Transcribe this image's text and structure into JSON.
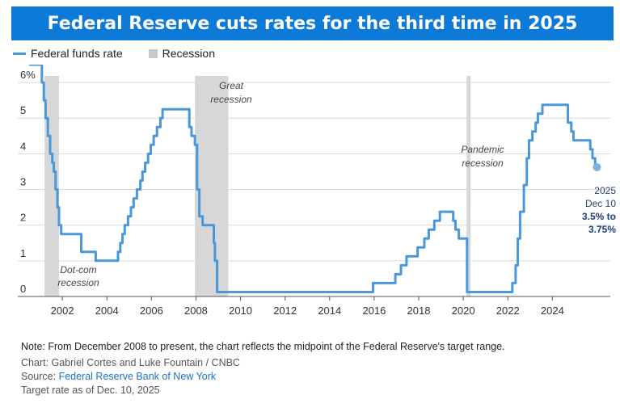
{
  "title": "Federal Reserve cuts rates for the third time in 2025",
  "legend": {
    "line_label": "Federal funds rate",
    "shade_label": "Recession"
  },
  "colors": {
    "title_bg": "#0c7ad6",
    "line": "#4a97d9",
    "recession": "#d7d7d7",
    "end_marker": "#7fb2e0"
  },
  "chart_data": {
    "type": "line",
    "x_ticks": [
      "2002",
      "2004",
      "2006",
      "2008",
      "2010",
      "2012",
      "2014",
      "2016",
      "2018",
      "2020",
      "2022",
      "2024"
    ],
    "y_ticks": [
      "6%",
      "5",
      "4",
      "3",
      "2",
      "1",
      "0"
    ],
    "xlim": [
      2000.0,
      2026.6
    ],
    "ylim": [
      0,
      6.5
    ],
    "grid": "horizontal",
    "legend_position": "top-left",
    "series": [
      {
        "name": "Federal funds rate",
        "step": true,
        "points": [
          [
            2000.5,
            6.5
          ],
          [
            2001.0,
            6.5
          ],
          [
            2001.08,
            6.0
          ],
          [
            2001.17,
            5.5
          ],
          [
            2001.25,
            5.0
          ],
          [
            2001.35,
            4.5
          ],
          [
            2001.45,
            4.0
          ],
          [
            2001.55,
            3.75
          ],
          [
            2001.62,
            3.5
          ],
          [
            2001.7,
            3.0
          ],
          [
            2001.78,
            2.5
          ],
          [
            2001.85,
            2.0
          ],
          [
            2001.95,
            1.75
          ],
          [
            2002.85,
            1.25
          ],
          [
            2003.5,
            1.0
          ],
          [
            2004.5,
            1.25
          ],
          [
            2004.6,
            1.5
          ],
          [
            2004.7,
            1.75
          ],
          [
            2004.8,
            2.0
          ],
          [
            2004.95,
            2.25
          ],
          [
            2005.08,
            2.5
          ],
          [
            2005.2,
            2.75
          ],
          [
            2005.35,
            3.0
          ],
          [
            2005.5,
            3.25
          ],
          [
            2005.6,
            3.5
          ],
          [
            2005.72,
            3.75
          ],
          [
            2005.85,
            4.0
          ],
          [
            2005.97,
            4.25
          ],
          [
            2006.1,
            4.5
          ],
          [
            2006.25,
            4.75
          ],
          [
            2006.4,
            5.0
          ],
          [
            2006.5,
            5.25
          ],
          [
            2007.7,
            4.75
          ],
          [
            2007.8,
            4.5
          ],
          [
            2007.95,
            4.25
          ],
          [
            2008.05,
            3.0
          ],
          [
            2008.15,
            2.25
          ],
          [
            2008.3,
            2.0
          ],
          [
            2008.8,
            1.5
          ],
          [
            2008.85,
            1.0
          ],
          [
            2008.95,
            0.125
          ],
          [
            2015.95,
            0.375
          ],
          [
            2016.95,
            0.625
          ],
          [
            2017.2,
            0.875
          ],
          [
            2017.45,
            1.125
          ],
          [
            2017.95,
            1.375
          ],
          [
            2018.25,
            1.625
          ],
          [
            2018.45,
            1.875
          ],
          [
            2018.7,
            2.125
          ],
          [
            2018.95,
            2.375
          ],
          [
            2019.55,
            2.125
          ],
          [
            2019.65,
            1.875
          ],
          [
            2019.8,
            1.625
          ],
          [
            2020.17,
            0.125
          ],
          [
            2022.2,
            0.375
          ],
          [
            2022.35,
            0.875
          ],
          [
            2022.45,
            1.625
          ],
          [
            2022.55,
            2.375
          ],
          [
            2022.72,
            3.125
          ],
          [
            2022.85,
            3.875
          ],
          [
            2022.95,
            4.375
          ],
          [
            2023.1,
            4.625
          ],
          [
            2023.25,
            4.875
          ],
          [
            2023.35,
            5.125
          ],
          [
            2023.55,
            5.375
          ],
          [
            2024.7,
            4.875
          ],
          [
            2024.85,
            4.625
          ],
          [
            2024.95,
            4.375
          ],
          [
            2025.7,
            4.125
          ],
          [
            2025.8,
            3.875
          ],
          [
            2025.92,
            3.625
          ]
        ]
      }
    ],
    "recessions": [
      [
        2001.2,
        2001.85
      ],
      [
        2007.95,
        2009.45
      ],
      [
        2020.15,
        2020.33
      ]
    ],
    "annotations": {
      "great_l1": "Great",
      "great_l2": "recession",
      "pandemic_l1": "Pandemic",
      "pandemic_l2": "recession",
      "dotcom_l1": "Dot-com",
      "dotcom_l2": "recession"
    },
    "end_label": {
      "year": "2025",
      "date": "Dec 10",
      "range_l1": "3.5% to",
      "range_l2": "3.75%"
    }
  },
  "notes": {
    "note": "Note: From December 2008 to present, the chart reflects the midpoint of the Federal Reserve's target range.",
    "credit": "Chart: Gabriel Cortes and Luke Fountain / CNBC",
    "source_prefix": "Source: ",
    "source_link": "Federal Reserve Bank of New York",
    "target": "Target rate as of Dec. 10, 2025"
  }
}
